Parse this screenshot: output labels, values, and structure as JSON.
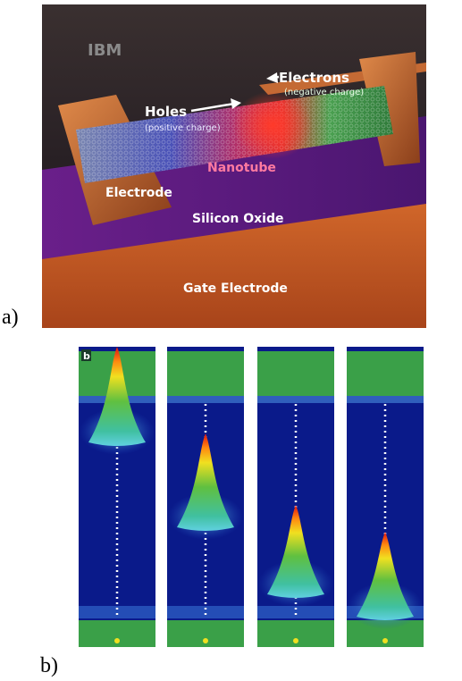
{
  "figure_a": {
    "label": "a)",
    "watermark": "IBM",
    "holes": "Holes",
    "holes_note": "(positive charge)",
    "electrons": "Electrons",
    "electrons_note": "(negative charge)",
    "nanotube": "Nanotube",
    "electrode": "Electrode",
    "silicon_oxide": "Silicon Oxide",
    "gate_electrode": "Gate Electrode"
  },
  "figure_b": {
    "label": "b)",
    "panel_tag": "b"
  }
}
